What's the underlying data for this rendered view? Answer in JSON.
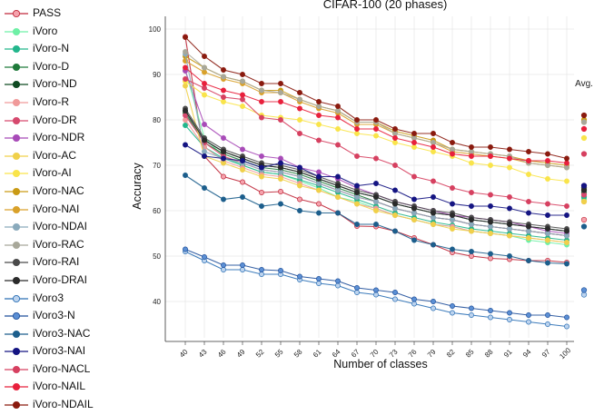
{
  "chart_data": {
    "type": "line",
    "title": "CIFAR-100 (20 phases)",
    "xlabel": "Number of classes",
    "ylabel": "Accuracy",
    "ylim": [
      32,
      102
    ],
    "yticks": [
      40,
      50,
      60,
      70,
      80,
      90,
      100
    ],
    "x": [
      40,
      43,
      46,
      49,
      52,
      55,
      58,
      61,
      64,
      67,
      70,
      73,
      76,
      79,
      82,
      85,
      88,
      91,
      94,
      97,
      100
    ],
    "avg_label": "Avg.",
    "series": [
      {
        "name": "PASS",
        "color": "#c0283a",
        "face": "#f5a3ad",
        "values": [
          98.3,
          72.0,
          67.5,
          66.3,
          64.0,
          64.2,
          62.5,
          61.5,
          59.5,
          56.6,
          56.5,
          55.5,
          54.0,
          52.5,
          50.8,
          50.0,
          49.5,
          49.3,
          49.0,
          49.0,
          48.6
        ],
        "avg": 58.0
      },
      {
        "name": "iVoro",
        "color": "#6ef0a6",
        "face": "#6ef0a6",
        "values": [
          91.0,
          76.0,
          72.0,
          70.0,
          68.5,
          68.0,
          66.5,
          65.0,
          63.0,
          62.0,
          60.5,
          59.0,
          58.0,
          57.0,
          56.5,
          55.5,
          55.0,
          54.5,
          53.5,
          53.0,
          52.5
        ],
        "avg": 62.5
      },
      {
        "name": "iVoro-N",
        "color": "#23b68c",
        "face": "#23b68c",
        "values": [
          78.8,
          74.0,
          71.5,
          70.0,
          68.5,
          68.0,
          66.8,
          65.5,
          64.0,
          62.5,
          61.0,
          59.5,
          58.5,
          57.5,
          56.8,
          56.0,
          55.5,
          55.0,
          54.5,
          54.0,
          53.5
        ],
        "avg": 63.0
      },
      {
        "name": "iVoro-D",
        "color": "#1f7a3a",
        "face": "#1f7a3a",
        "values": [
          81.5,
          75.0,
          72.5,
          71.0,
          69.5,
          69.0,
          68.0,
          66.5,
          65.0,
          63.5,
          62.0,
          60.5,
          59.5,
          58.5,
          58.0,
          57.0,
          56.5,
          56.0,
          55.5,
          55.0,
          54.5
        ],
        "avg": 64.0
      },
      {
        "name": "iVoro-ND",
        "color": "#0e4a22",
        "face": "#0e4a22",
        "values": [
          82.0,
          75.5,
          73.0,
          71.5,
          70.0,
          69.5,
          68.5,
          67.0,
          65.5,
          64.0,
          63.0,
          61.5,
          60.5,
          59.5,
          59.0,
          58.0,
          57.5,
          57.0,
          56.5,
          56.0,
          55.5
        ],
        "avg": 65.0
      },
      {
        "name": "iVoro-R",
        "color": "#f09a9a",
        "face": "#f09a9a",
        "values": [
          80.0,
          74.0,
          71.0,
          69.5,
          68.0,
          67.5,
          66.0,
          64.5,
          63.0,
          61.5,
          60.5,
          59.0,
          58.0,
          57.0,
          56.5,
          55.5,
          55.0,
          54.5,
          54.0,
          53.5,
          53.0
        ],
        "avg": 62.0
      },
      {
        "name": "iVoro-DR",
        "color": "#d6496e",
        "face": "#d6496e",
        "values": [
          81.0,
          75.0,
          72.0,
          70.5,
          69.0,
          68.5,
          67.5,
          66.0,
          64.5,
          63.0,
          62.0,
          60.5,
          59.5,
          58.5,
          58.0,
          57.0,
          56.5,
          56.0,
          55.5,
          55.0,
          54.5
        ],
        "avg": 63.5
      },
      {
        "name": "iVoro-NDR",
        "color": "#a84bb8",
        "face": "#a84bb8",
        "values": [
          90.8,
          79.0,
          76.0,
          73.5,
          72.0,
          71.5,
          69.5,
          68.5,
          67.0,
          65.0,
          63.5,
          62.0,
          61.0,
          60.0,
          59.0,
          58.5,
          58.0,
          57.5,
          56.5,
          55.5,
          55.0
        ],
        "avg": 65.5
      },
      {
        "name": "iVoro-AC",
        "color": "#f0d04a",
        "face": "#f0d04a",
        "values": [
          87.5,
          72.0,
          70.5,
          69.0,
          67.5,
          67.0,
          65.5,
          64.5,
          63.0,
          61.5,
          60.0,
          59.0,
          58.0,
          57.0,
          56.0,
          55.5,
          55.0,
          54.5,
          54.0,
          53.5,
          53.0
        ],
        "avg": 62.0
      },
      {
        "name": "iVoro-AI",
        "color": "#f9e44a",
        "face": "#f9e44a",
        "values": [
          88.5,
          85.5,
          84.0,
          83.0,
          81.0,
          80.5,
          80.0,
          79.0,
          78.0,
          77.0,
          76.5,
          75.0,
          74.0,
          73.0,
          72.0,
          70.5,
          70.0,
          69.5,
          68.0,
          67.0,
          66.5
        ],
        "avg": 76.0
      },
      {
        "name": "iVoro-NAC",
        "color": "#c99a15",
        "face": "#c99a15",
        "values": [
          94.0,
          91.5,
          89.5,
          88.5,
          86.5,
          86.5,
          84.5,
          83.0,
          82.0,
          79.5,
          79.5,
          77.5,
          76.5,
          75.5,
          73.5,
          73.0,
          72.5,
          72.0,
          71.0,
          70.5,
          70.0
        ],
        "avg": 80.0
      },
      {
        "name": "iVoro-NAI",
        "color": "#d9a12a",
        "face": "#d9a12a",
        "values": [
          93.0,
          90.5,
          89.0,
          88.0,
          86.0,
          86.0,
          84.0,
          82.5,
          81.5,
          79.0,
          79.0,
          77.0,
          76.0,
          75.0,
          73.0,
          72.5,
          72.0,
          71.5,
          70.5,
          70.0,
          69.5
        ],
        "avg": 79.5
      },
      {
        "name": "iVoro-NDAI",
        "color": "#8aaabc",
        "face": "#8aaabc",
        "values": [
          94.5,
          73.0,
          71.5,
          70.5,
          69.0,
          68.5,
          67.5,
          66.0,
          64.5,
          63.0,
          62.0,
          60.5,
          59.5,
          58.5,
          58.0,
          57.0,
          56.5,
          56.0,
          55.5,
          55.0,
          54.5
        ],
        "avg": 64.5
      },
      {
        "name": "iVoro-RAC",
        "color": "#a8a89a",
        "face": "#a8a89a",
        "values": [
          95.0,
          91.5,
          89.5,
          88.5,
          86.5,
          86.0,
          84.5,
          83.0,
          82.0,
          79.5,
          79.5,
          77.0,
          76.0,
          75.0,
          73.5,
          73.0,
          72.5,
          72.0,
          70.5,
          70.0,
          69.5
        ],
        "avg": 79.5
      },
      {
        "name": "iVoro-RAI",
        "color": "#4a4a4a",
        "face": "#4a4a4a",
        "values": [
          82.5,
          76.0,
          73.5,
          72.0,
          70.5,
          70.0,
          69.0,
          67.5,
          66.0,
          64.5,
          63.5,
          62.0,
          61.0,
          60.0,
          59.5,
          58.5,
          58.0,
          57.5,
          57.0,
          56.5,
          56.0
        ],
        "avg": 65.0
      },
      {
        "name": "iVoro-DRAI",
        "color": "#2a2a2a",
        "face": "#2a2a2a",
        "values": [
          82.0,
          75.5,
          73.0,
          71.5,
          70.0,
          69.5,
          68.5,
          67.0,
          65.5,
          64.0,
          63.0,
          61.5,
          60.5,
          59.5,
          59.0,
          58.0,
          57.5,
          57.0,
          56.5,
          56.0,
          55.5
        ],
        "avg": 64.5
      },
      {
        "name": "iVoro3",
        "color": "#2a6fb5",
        "face": "#bcd3ee",
        "values": [
          51.0,
          49.0,
          47.0,
          47.0,
          46.0,
          46.0,
          44.8,
          44.0,
          43.5,
          42.0,
          41.5,
          40.5,
          39.5,
          38.5,
          37.5,
          37.0,
          36.5,
          36.0,
          35.5,
          35.0,
          34.5
        ],
        "avg": 41.5
      },
      {
        "name": "iVoro3-N",
        "color": "#1f4f9a",
        "face": "#5b8fd4",
        "values": [
          51.5,
          49.8,
          48.0,
          48.0,
          47.0,
          46.8,
          45.5,
          45.0,
          44.5,
          43.0,
          42.5,
          42.0,
          40.5,
          40.0,
          39.0,
          38.5,
          38.0,
          37.5,
          37.0,
          37.0,
          36.5
        ],
        "avg": 42.5
      },
      {
        "name": "iVoro3-NAC",
        "color": "#1c5e8c",
        "face": "#1c5e8c",
        "values": [
          67.8,
          65.0,
          62.5,
          63.0,
          61.0,
          61.5,
          60.0,
          59.5,
          59.5,
          57.0,
          57.0,
          55.5,
          53.5,
          52.5,
          51.5,
          51.0,
          50.5,
          50.0,
          49.0,
          48.5,
          48.3
        ],
        "avg": 56.5
      },
      {
        "name": "iVoro3-NAI",
        "color": "#141482",
        "face": "#141482",
        "values": [
          74.5,
          72.0,
          71.5,
          71.0,
          69.5,
          70.5,
          69.5,
          67.5,
          67.5,
          65.5,
          66.0,
          64.5,
          62.5,
          63.0,
          61.5,
          61.0,
          61.0,
          60.5,
          59.5,
          59.0,
          59.0
        ],
        "avg": 65.5
      },
      {
        "name": "iVoro-NACL",
        "color": "#d64060",
        "face": "#d64060",
        "values": [
          89.0,
          87.0,
          85.0,
          84.5,
          80.5,
          80.0,
          77.0,
          75.5,
          74.5,
          72.0,
          71.5,
          70.0,
          67.5,
          66.5,
          65.0,
          64.0,
          63.5,
          63.0,
          62.0,
          61.5,
          61.0
        ],
        "avg": 72.5
      },
      {
        "name": "iVoro-NAIL",
        "color": "#e8203c",
        "face": "#e8203c",
        "values": [
          91.5,
          88.0,
          86.5,
          85.5,
          84.0,
          84.0,
          82.5,
          81.0,
          80.5,
          78.0,
          78.0,
          76.0,
          75.0,
          74.0,
          72.5,
          72.0,
          72.0,
          71.5,
          71.0,
          71.0,
          70.5
        ],
        "avg": 78.0
      },
      {
        "name": "iVoro-NDAIL",
        "color": "#8a1a0e",
        "face": "#8a1a0e",
        "values": [
          98.2,
          94.0,
          91.0,
          90.0,
          88.0,
          88.0,
          86.0,
          84.0,
          83.0,
          80.0,
          80.0,
          78.0,
          77.0,
          77.0,
          75.0,
          74.0,
          74.0,
          73.5,
          73.0,
          72.5,
          71.5
        ],
        "avg": 81.0
      }
    ]
  }
}
